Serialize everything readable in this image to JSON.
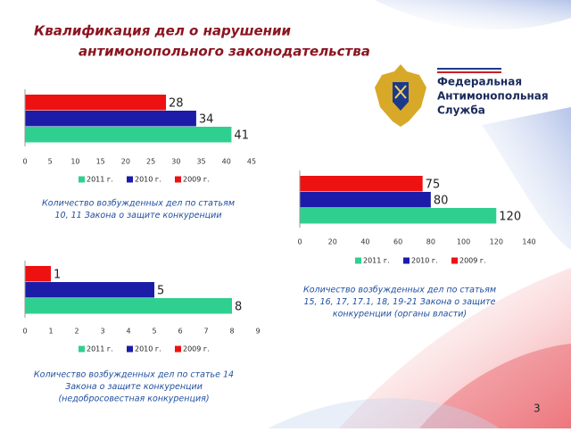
{
  "title": [
    "Квалификация дел о нарушении",
    "антимонопольного законодательства"
  ],
  "logo": [
    "Федеральная",
    "Антимонопольная",
    "Служба"
  ],
  "page_number": "3",
  "chart_data": [
    {
      "type": "bar",
      "orientation": "horizontal",
      "series": [
        {
          "name": "2011 г.",
          "color": "#2fd08f",
          "values": [
            41
          ]
        },
        {
          "name": "2010 г.",
          "color": "#1c1ca8",
          "values": [
            34
          ]
        },
        {
          "name": "2009 г.",
          "color": "#ee1111",
          "values": [
            28
          ]
        }
      ],
      "xlim": [
        0,
        45
      ],
      "xticks": [
        0,
        5,
        10,
        15,
        20,
        25,
        30,
        35,
        40,
        45
      ],
      "caption": [
        "Количество возбужденных дел по статьям",
        "10, 11 Закона о защите конкуренции"
      ]
    },
    {
      "type": "bar",
      "orientation": "horizontal",
      "series": [
        {
          "name": "2011 г.",
          "color": "#2fd08f",
          "values": [
            120
          ]
        },
        {
          "name": "2010 г.",
          "color": "#1c1ca8",
          "values": [
            80
          ]
        },
        {
          "name": "2009 г.",
          "color": "#ee1111",
          "values": [
            75
          ]
        }
      ],
      "xlim": [
        0,
        140
      ],
      "xticks": [
        0,
        20,
        40,
        60,
        80,
        100,
        120,
        140
      ],
      "caption": [
        "Количество возбужденных дел по статьям",
        "15, 16, 17, 17.1, 18, 19-21 Закона о защите",
        "конкуренции (органы власти)"
      ]
    },
    {
      "type": "bar",
      "orientation": "horizontal",
      "series": [
        {
          "name": "2011 г.",
          "color": "#2fd08f",
          "values": [
            8
          ]
        },
        {
          "name": "2010 г.",
          "color": "#1c1ca8",
          "values": [
            5
          ]
        },
        {
          "name": "2009 г.",
          "color": "#ee1111",
          "values": [
            1
          ]
        }
      ],
      "xlim": [
        0,
        9
      ],
      "xticks": [
        0,
        1,
        2,
        3,
        4,
        5,
        6,
        7,
        8,
        9
      ],
      "caption": [
        "Количество возбужденных дел по статье 14",
        "Закона о защите конкуренции",
        "(недобросовестная конкуренция)"
      ]
    }
  ]
}
